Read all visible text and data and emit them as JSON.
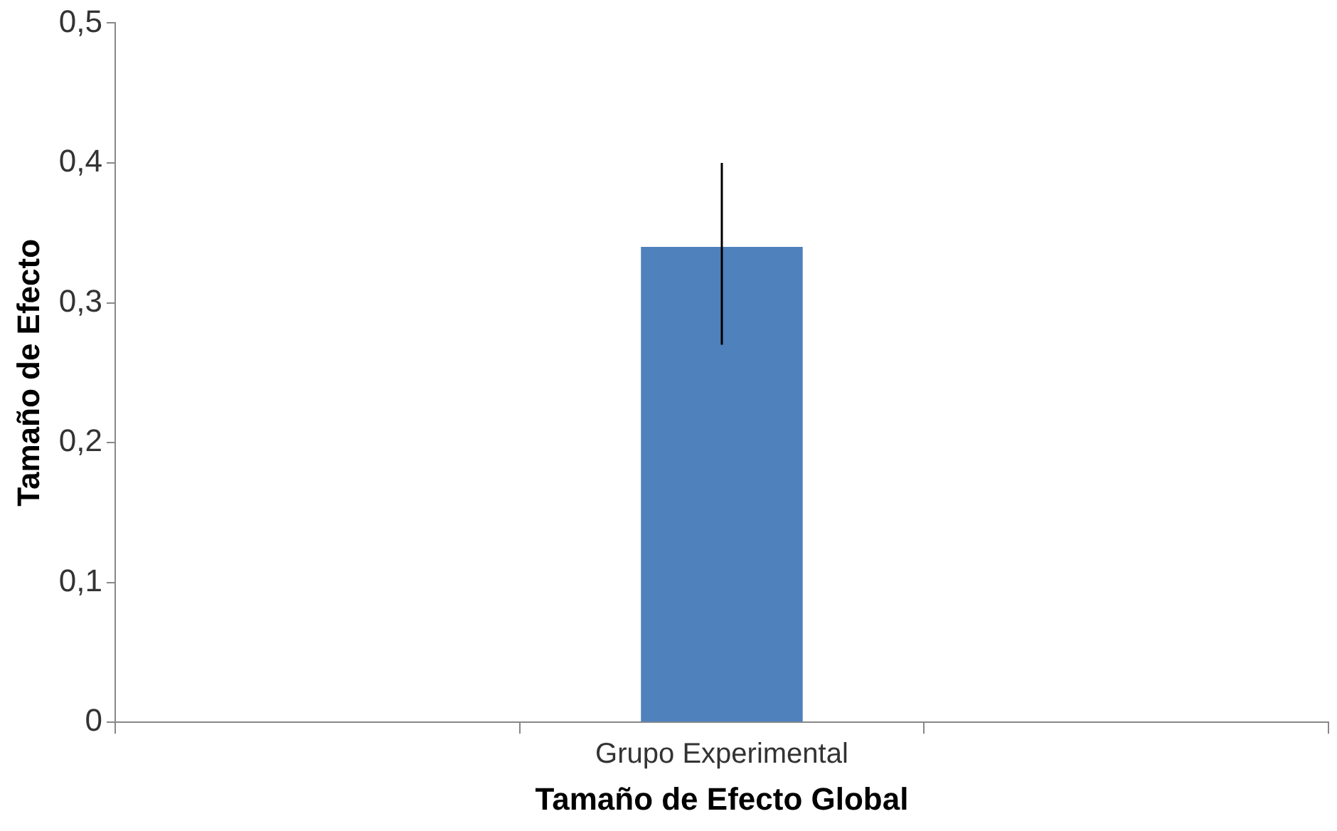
{
  "chart_data": {
    "type": "bar",
    "xlabel": "Tamaño de Efecto Global",
    "ylabel": "Tamaño de Efecto",
    "categories": [
      null,
      "Grupo Experimental",
      null
    ],
    "values": [
      null,
      0.34,
      null
    ],
    "errors": [
      null,
      [
        0.27,
        0.4
      ],
      null
    ],
    "color": "#4f81bd",
    "ylim": [
      0,
      0.5
    ],
    "yticks": [
      0,
      {
        "value": 0.1,
        "label": "0,1"
      },
      {
        "value": 0.2,
        "label": "0,2"
      },
      {
        "value": 0.3,
        "label": "0,3"
      },
      {
        "value": 0.4,
        "label": "0,4"
      },
      {
        "value": 0.5,
        "label": "0,5"
      }
    ],
    "grid": false,
    "legend": false
  }
}
